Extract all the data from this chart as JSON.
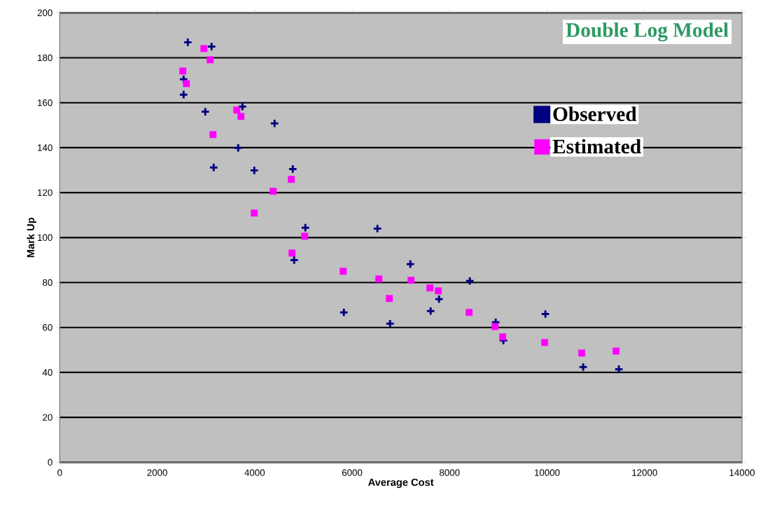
{
  "chart_data": {
    "type": "scatter",
    "xlabel": "Average Cost",
    "ylabel": "Mark Up",
    "annotations": [
      "Double Log Model"
    ],
    "xlim": [
      0,
      14000
    ],
    "xticks": [
      0,
      2000,
      4000,
      6000,
      8000,
      10000,
      12000,
      14000
    ],
    "ylim": [
      0,
      200
    ],
    "yticks": [
      0,
      20,
      40,
      60,
      80,
      100,
      120,
      140,
      160,
      180,
      200
    ],
    "grid": "y",
    "legend": "right",
    "series": [
      {
        "name": "Observed",
        "color": "#000080",
        "marker": "cross",
        "x": [
          2628,
          3116,
          2542,
          2542,
          2987,
          3748,
          4408,
          3662,
          3159,
          3992,
          4782,
          5040,
          4810,
          6519,
          5830,
          7194,
          6778,
          7783,
          7611,
          8415,
          8946,
          9104,
          9966,
          10741,
          11473
        ],
        "values": [
          186.9,
          185,
          170.4,
          163.6,
          156,
          158.3,
          150.8,
          139.9,
          131.2,
          129.9,
          130.5,
          104.4,
          90,
          104,
          66.7,
          88.2,
          61.7,
          72.6,
          67.3,
          80.7,
          62.3,
          54.2,
          66,
          42.4,
          41.4
        ]
      },
      {
        "name": "Estimated",
        "color": "#ff00ff",
        "marker": "square",
        "x": [
          2958,
          3087,
          2527,
          2599,
          3145,
          3633,
          3719,
          4380,
          3992,
          4753,
          5026,
          4767,
          5816,
          6548,
          7208,
          6763,
          7596,
          7769,
          8401,
          8932,
          9090,
          9951,
          10712,
          11416
        ],
        "values": [
          184.1,
          179.1,
          174.1,
          168.5,
          145.8,
          156.7,
          153.9,
          120.6,
          110.9,
          125.9,
          100.6,
          93.1,
          85,
          81.6,
          81,
          72.9,
          77.6,
          76.3,
          66.7,
          60.4,
          55.8,
          53.3,
          48.6,
          49.5
        ]
      }
    ]
  }
}
